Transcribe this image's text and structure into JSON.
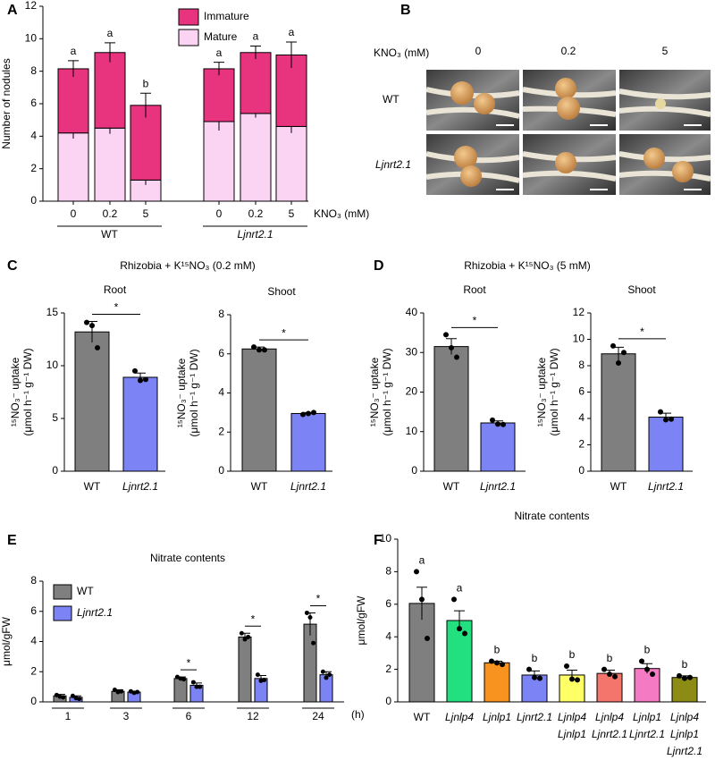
{
  "image_panel": {
    "panel": "B",
    "axis_label": "KNO₃ (mM)",
    "columns": [
      "0",
      "0.2",
      "5"
    ],
    "rows": [
      "WT",
      "Ljnrt2.1"
    ]
  },
  "chart_data": [
    {
      "panel": "A",
      "type": "stacked_bar",
      "ylabel": "Number of nodules",
      "xlabel": "KNO₃ (mM)",
      "categories": [
        "0",
        "0.2",
        "5",
        "0",
        "0.2",
        "5"
      ],
      "groups": [
        "WT",
        "Ljnrt2.1"
      ],
      "letters": [
        "a",
        "a",
        "b",
        "a",
        "a",
        "a"
      ],
      "series": [
        {
          "name": "Mature",
          "color": "#fbd3f3",
          "values": [
            4.2,
            4.5,
            1.3,
            4.9,
            5.4,
            4.6
          ],
          "errors": [
            0.35,
            0.35,
            0.3,
            0.55,
            0.25,
            0.4
          ]
        },
        {
          "name": "Immature",
          "color": "#e8337f",
          "values": [
            3.95,
            4.65,
            4.6,
            3.25,
            3.75,
            4.4
          ],
          "errors": [
            0.5,
            0.6,
            0.75,
            0.4,
            0.4,
            0.8
          ]
        }
      ],
      "ylim": [
        0,
        12
      ],
      "yticks": [
        0,
        2,
        4,
        6,
        8,
        10,
        12
      ]
    },
    {
      "panel": "C",
      "group_title": "Rhizobia + K¹⁵NO₃ (0.2 mM)",
      "type": "bar",
      "title": "Root",
      "ylabel": [
        "¹⁵NO₃⁻ uptake",
        "(μmol h⁻¹ g⁻¹ DW)"
      ],
      "categories": [
        "WT",
        "Ljnrt2.1"
      ],
      "colors": [
        "#7f7f7f",
        "#7b83f5"
      ],
      "values": [
        13.2,
        8.9
      ],
      "errors": [
        1.0,
        0.4
      ],
      "points": [
        [
          14.1,
          13.8,
          11.7
        ],
        [
          9.5,
          8.6,
          8.7
        ]
      ],
      "significance": "*",
      "ylim": [
        0,
        15
      ],
      "yticks": [
        0,
        5,
        10,
        15
      ]
    },
    {
      "type": "bar",
      "title": "Shoot",
      "ylabel": [
        "¹⁵NO₃⁻ uptake",
        "(μmol h⁻¹ g⁻¹ DW)"
      ],
      "categories": [
        "WT",
        "Ljnrt2.1"
      ],
      "colors": [
        "#7f7f7f",
        "#7b83f5"
      ],
      "values": [
        6.25,
        2.95
      ],
      "errors": [
        0.1,
        0.05
      ],
      "points": [
        [
          6.35,
          6.2,
          6.2
        ],
        [
          2.9,
          2.95,
          3.0
        ]
      ],
      "significance": "*",
      "ylim": [
        0,
        8
      ],
      "yticks": [
        0,
        2,
        4,
        6,
        8
      ]
    },
    {
      "panel": "D",
      "group_title": "Rhizobia + K¹⁵NO₃ (5 mM)",
      "type": "bar",
      "title": "Root",
      "ylabel": [
        "¹⁵NO₃⁻ uptake",
        "(μmol h⁻¹ g⁻¹ DW)"
      ],
      "categories": [
        "WT",
        "Ljnrt2.1"
      ],
      "colors": [
        "#7f7f7f",
        "#7b83f5"
      ],
      "values": [
        31.5,
        12.2
      ],
      "errors": [
        2.0,
        0.5
      ],
      "points": [
        [
          34.5,
          31.2,
          28.8
        ],
        [
          12.9,
          11.9,
          11.8
        ]
      ],
      "significance": "*",
      "ylim": [
        0,
        40
      ],
      "yticks": [
        0,
        10,
        20,
        30,
        40
      ]
    },
    {
      "type": "bar",
      "title": "Shoot",
      "ylabel": [
        "¹⁵NO₃⁻ uptake",
        "(μmol h⁻¹ g⁻¹ DW)"
      ],
      "categories": [
        "WT",
        "Ljnrt2.1"
      ],
      "colors": [
        "#7f7f7f",
        "#7b83f5"
      ],
      "values": [
        8.9,
        4.1
      ],
      "errors": [
        0.5,
        0.3
      ],
      "points": [
        [
          9.5,
          8.2,
          9.0
        ],
        [
          4.5,
          3.9,
          3.95
        ]
      ],
      "significance": "*",
      "ylim": [
        0,
        12
      ],
      "yticks": [
        0,
        2,
        4,
        6,
        8,
        10,
        12
      ]
    },
    {
      "panel": "E",
      "type": "grouped_bar",
      "title": "Nitrate contents",
      "ylabel": "μmol/gFW",
      "categories": [
        "1",
        "3",
        "6",
        "12",
        "24"
      ],
      "xunit": "(h)",
      "significance": [
        null,
        null,
        "*",
        "*",
        "*"
      ],
      "series": [
        {
          "name": "WT",
          "color": "#7f7f7f",
          "values": [
            0.4,
            0.7,
            1.55,
            4.3,
            5.15
          ],
          "errors": [
            0.1,
            0.1,
            0.1,
            0.25,
            0.75
          ],
          "points": [
            [
              0.45,
              0.35,
              0.3
            ],
            [
              0.8,
              0.65,
              0.7
            ],
            [
              1.65,
              1.55,
              1.5
            ],
            [
              4.55,
              4.15,
              4.3
            ],
            [
              5.9,
              5.6,
              3.9
            ]
          ]
        },
        {
          "name": "Ljnrt2.1",
          "color": "#7b83f5",
          "values": [
            0.3,
            0.65,
            1.1,
            1.55,
            1.8
          ],
          "errors": [
            0.1,
            0.05,
            0.15,
            0.2,
            0.2
          ],
          "points": [
            [
              0.4,
              0.25,
              0.2
            ],
            [
              0.7,
              0.6,
              0.65
            ],
            [
              1.3,
              1.0,
              1.0
            ],
            [
              1.8,
              1.4,
              1.45
            ],
            [
              2.0,
              1.6,
              1.8
            ]
          ]
        }
      ],
      "ylim": [
        0,
        8
      ],
      "yticks": [
        0,
        2,
        4,
        6,
        8
      ]
    },
    {
      "panel": "F",
      "type": "bar",
      "title": "Nitrate contents",
      "ylabel": "μmol/gFW",
      "categories": [
        [
          "WT"
        ],
        [
          "Ljnlp4"
        ],
        [
          "Ljnlp1"
        ],
        [
          "Ljnrt2.1"
        ],
        [
          "Ljnlp4",
          "Ljnlp1"
        ],
        [
          "Ljnlp4",
          "Ljnrt2.1"
        ],
        [
          "Ljnlp1",
          "Ljnrt2.1"
        ],
        [
          "Ljnlp4",
          "Ljnlp1",
          "Ljnrt2.1"
        ]
      ],
      "colors": [
        "#7f7f7f",
        "#22e07f",
        "#f7931e",
        "#7b83f5",
        "#ffff66",
        "#f4756b",
        "#f47ac4",
        "#8c8c14"
      ],
      "values": [
        6.05,
        5.0,
        2.4,
        1.65,
        1.65,
        1.75,
        2.05,
        1.5
      ],
      "errors": [
        1.0,
        0.6,
        0.1,
        0.25,
        0.3,
        0.2,
        0.3,
        0.1
      ],
      "points": [
        [
          8.0,
          6.3,
          3.9
        ],
        [
          6.3,
          4.5,
          4.2
        ],
        [
          2.5,
          2.4,
          2.3
        ],
        [
          2.0,
          1.5,
          1.45
        ],
        [
          2.2,
          1.4,
          1.35
        ],
        [
          2.0,
          1.7,
          1.55
        ],
        [
          2.5,
          2.0,
          1.7
        ],
        [
          1.6,
          1.45,
          1.5
        ]
      ],
      "letters": [
        "a",
        "a",
        "b",
        "b",
        "b",
        "b",
        "b",
        "b"
      ],
      "ylim": [
        0,
        10
      ],
      "yticks": [
        0,
        2,
        4,
        6,
        8,
        10
      ]
    }
  ]
}
